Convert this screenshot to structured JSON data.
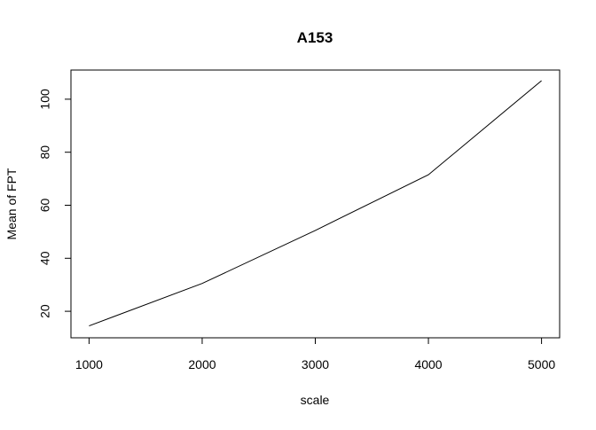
{
  "chart_data": {
    "type": "line",
    "title": "A153",
    "xlabel": "scale",
    "ylabel": "Mean of FPT",
    "x": [
      1000,
      2000,
      3000,
      4000,
      5000
    ],
    "series": [
      {
        "values": [
          14.5,
          30.5,
          50.5,
          71.5,
          107
        ]
      }
    ],
    "xlim": [
      840,
      5160
    ],
    "ylim": [
      10,
      111
    ],
    "xticks": [
      1000,
      2000,
      3000,
      4000,
      5000
    ],
    "yticks": [
      20,
      40,
      60,
      80,
      100
    ],
    "xtick_labels": [
      "1000",
      "2000",
      "3000",
      "4000",
      "5000"
    ],
    "ytick_labels": [
      "20",
      "40",
      "60",
      "80",
      "100"
    ],
    "grid": false,
    "line_color": "#000000",
    "background": "#ffffff"
  }
}
